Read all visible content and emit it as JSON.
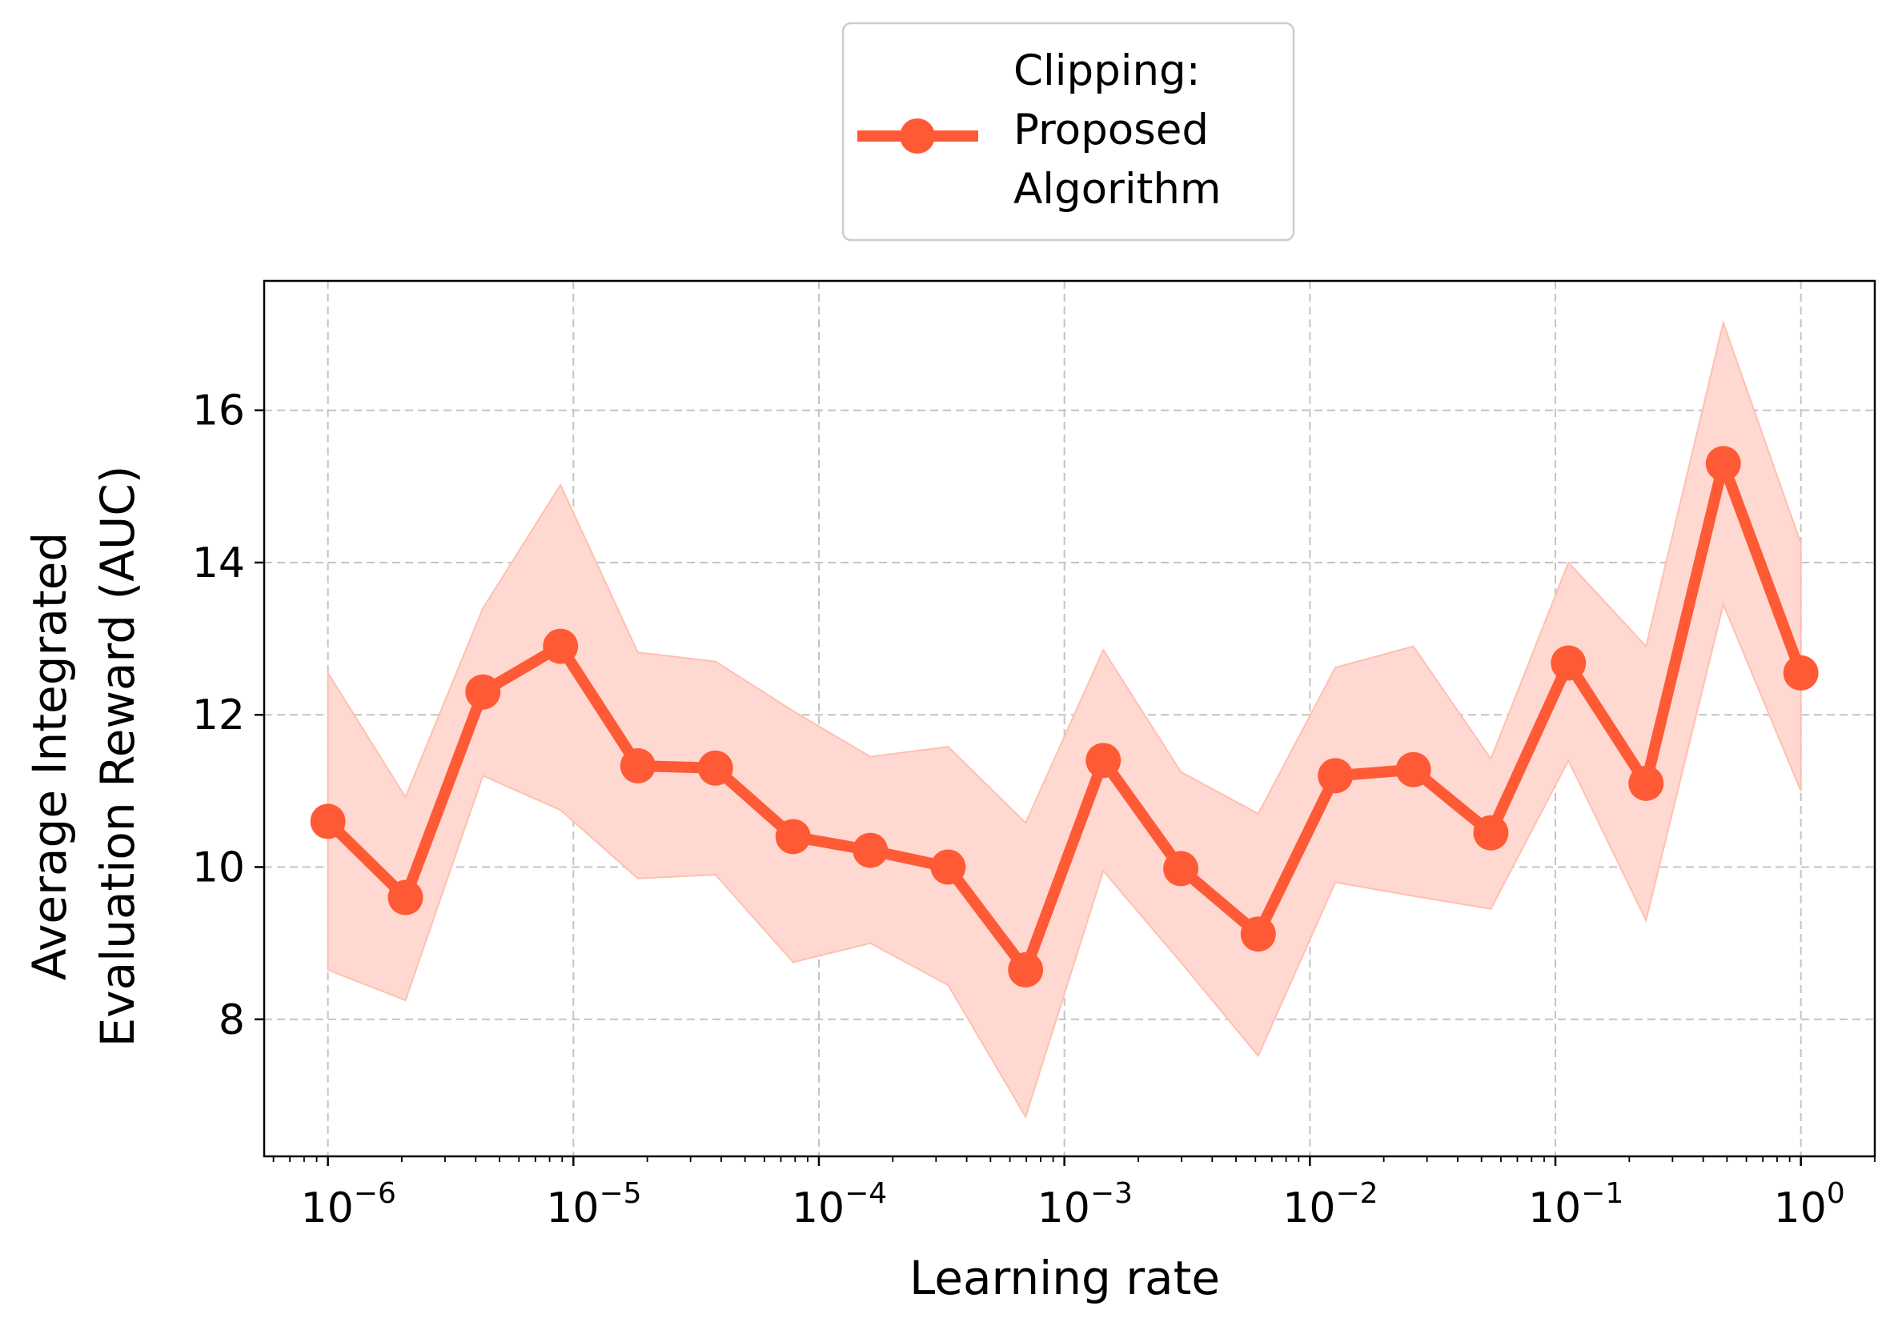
{
  "chart_data": {
    "type": "line",
    "title": "",
    "xlabel": "Learning rate",
    "ylabel_lines": [
      "Average Integrated",
      "Evaluation Reward (AUC)"
    ],
    "x_scale": "log",
    "xlim": [
      5.5e-07,
      2.0
    ],
    "ylim": [
      6.2,
      17.7
    ],
    "x_ticks": [
      {
        "value": 1e-06,
        "base": "10",
        "exp": "−6"
      },
      {
        "value": 1e-05,
        "base": "10",
        "exp": "−5"
      },
      {
        "value": 0.0001,
        "base": "10",
        "exp": "−4"
      },
      {
        "value": 0.001,
        "base": "10",
        "exp": "−3"
      },
      {
        "value": 0.01,
        "base": "10",
        "exp": "−2"
      },
      {
        "value": 0.1,
        "base": "10",
        "exp": "−1"
      },
      {
        "value": 1,
        "base": "10",
        "exp": "0"
      }
    ],
    "y_ticks": [
      {
        "value": 8,
        "label": "8"
      },
      {
        "value": 10,
        "label": "10"
      },
      {
        "value": 12,
        "label": "12"
      },
      {
        "value": 14,
        "label": "14"
      },
      {
        "value": 16,
        "label": "16"
      }
    ],
    "grid": true,
    "legend_position": "top-center",
    "legend_title": "Clipping:",
    "legend_label_lines": [
      "Proposed",
      "Algorithm"
    ],
    "series": [
      {
        "name": "Proposed Algorithm",
        "color": "#ff5a36",
        "band_color": "#ffd9d1",
        "band_edge_color": "#ffbfb1",
        "x": [
          1e-06,
          2.07e-06,
          4.28e-06,
          8.86e-06,
          1.83e-05,
          3.79e-05,
          7.85e-05,
          0.000162,
          0.000336,
          0.000695,
          0.00144,
          0.00298,
          0.00616,
          0.0127,
          0.0264,
          0.0546,
          0.113,
          0.234,
          0.483,
          1.0
        ],
        "y": [
          10.6,
          9.6,
          12.3,
          12.9,
          11.33,
          11.3,
          10.4,
          10.22,
          10.0,
          8.65,
          11.4,
          9.98,
          9.12,
          11.2,
          11.28,
          10.45,
          12.68,
          11.1,
          15.3,
          12.55
        ],
        "lower": [
          8.65,
          8.25,
          11.2,
          10.75,
          9.85,
          9.9,
          8.75,
          9.0,
          8.45,
          6.72,
          9.95,
          8.75,
          7.52,
          9.8,
          9.62,
          9.45,
          11.4,
          9.3,
          13.45,
          11.0
        ],
        "upper": [
          12.55,
          10.92,
          13.4,
          15.02,
          12.82,
          12.7,
          12.05,
          11.45,
          11.58,
          10.58,
          12.85,
          11.25,
          10.7,
          12.62,
          12.9,
          11.42,
          14.0,
          12.9,
          17.15,
          14.25
        ]
      }
    ]
  }
}
